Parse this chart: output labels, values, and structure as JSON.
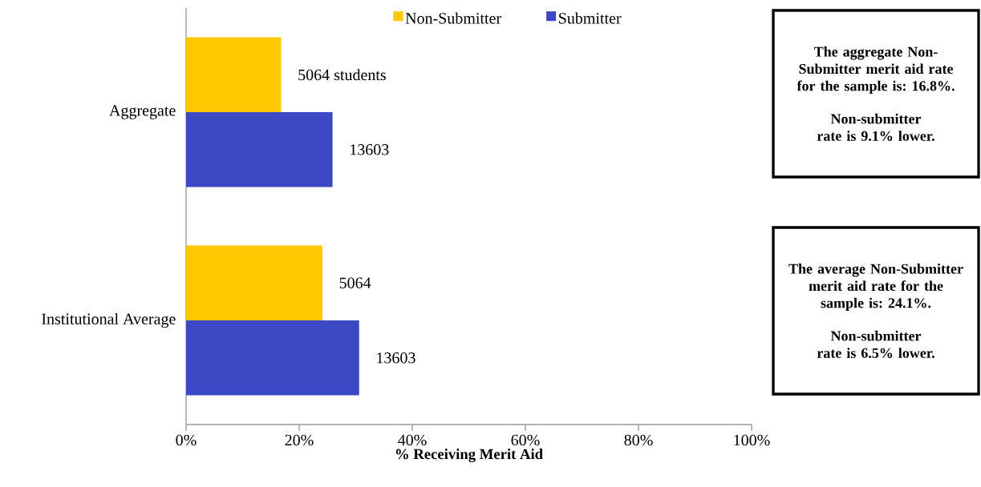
{
  "chart_data": {
    "type": "bar",
    "orientation": "horizontal",
    "categories": [
      "Aggregate",
      "Institutional Average"
    ],
    "series": [
      {
        "name": "Non-Submitter",
        "color": "#ffc800",
        "values": [
          16.8,
          24.1
        ]
      },
      {
        "name": "Submitter",
        "color": "#3d48c4",
        "values": [
          25.9,
          30.6
        ]
      }
    ],
    "xlim": [
      0,
      100
    ],
    "xticks": [
      {
        "value": 0,
        "label": "0%"
      },
      {
        "value": 20,
        "label": "20%"
      },
      {
        "value": 40,
        "label": "40%"
      },
      {
        "value": 60,
        "label": "60%"
      },
      {
        "value": 80,
        "label": "80%"
      },
      {
        "value": 100,
        "label": "100%"
      }
    ],
    "xlabel": "% Receiving Merit Aid",
    "legend": "top",
    "annotations": [
      {
        "text": "5064 students",
        "x": 16.8,
        "y": "Aggregate"
      },
      {
        "text": "13603",
        "x": 25.9,
        "y": "Aggregate"
      },
      {
        "text": "5064",
        "x": 24.1,
        "y": "Institutional Average"
      },
      {
        "text": "13603",
        "x": 30.6,
        "y": "Institutional Average"
      },
      "The aggregate Non-Submitter merit aid rate for the sample is: 16.8%.",
      "Non-submitter rate is 9.1% lower.",
      "The average Non-Submitter merit aid rate for the sample is: 24.1%.",
      "Non-submitter rate is 6.5% lower."
    ]
  }
}
